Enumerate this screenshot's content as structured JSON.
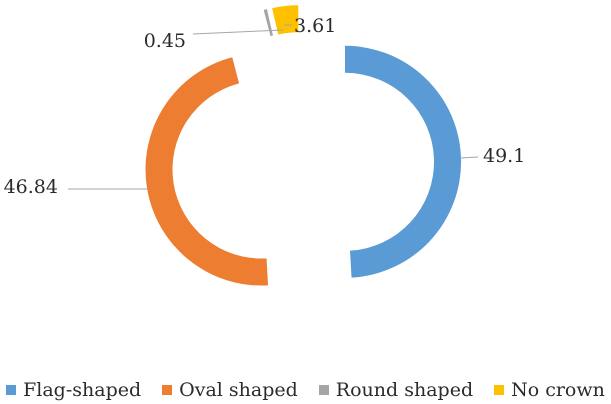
{
  "chart_data": {
    "type": "pie",
    "variant": "exploded-doughnut",
    "categories": [
      "Flag-shaped",
      "Oval shaped",
      "Round shaped",
      "No crown"
    ],
    "values": [
      49.1,
      46.84,
      0.45,
      3.61
    ],
    "data_labels": [
      "49.1",
      "46.84",
      "0.45",
      "3.61"
    ],
    "colors": [
      "#5b9bd5",
      "#ed7d31",
      "#a5a5a5",
      "#ffc000"
    ],
    "title": "",
    "legend_position": "bottom"
  }
}
